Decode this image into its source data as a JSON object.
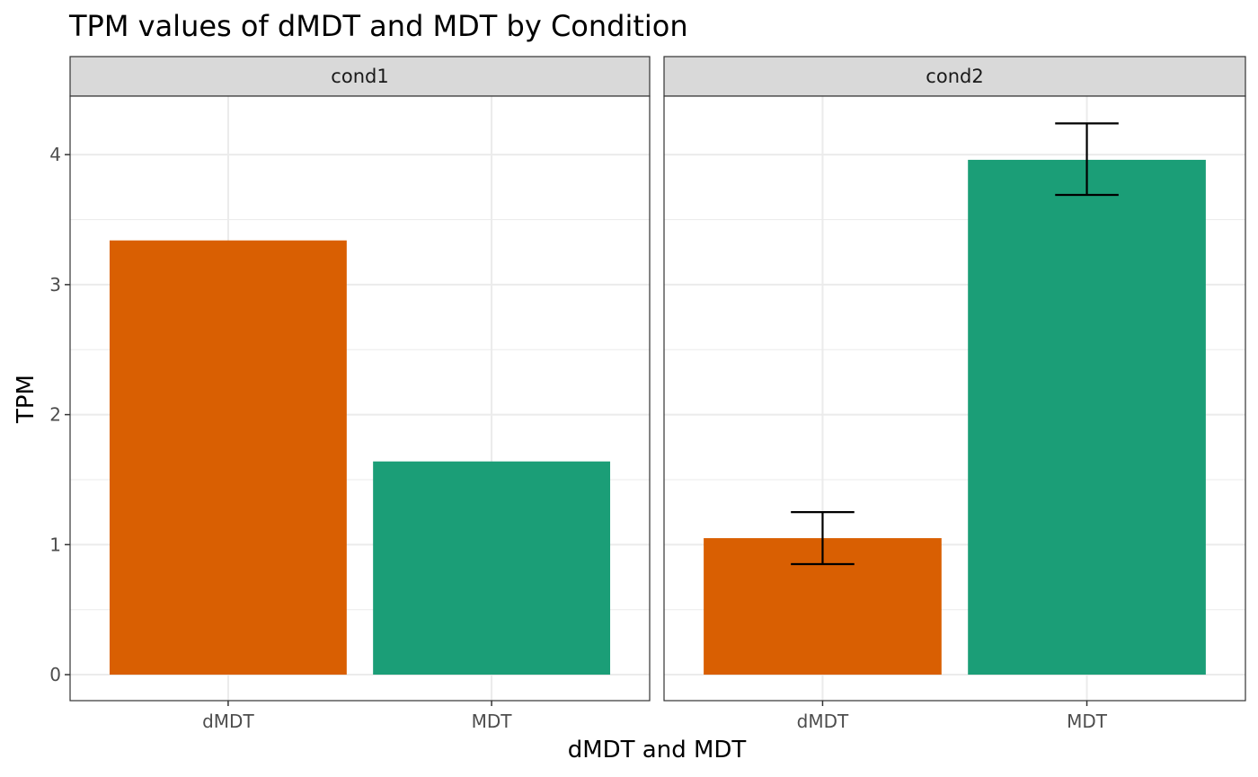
{
  "chart_data": {
    "type": "bar",
    "title": "TPM values of dMDT and MDT by Condition",
    "xlabel": "dMDT and MDT",
    "ylabel": "TPM",
    "ylim": [
      -0.2,
      4.45
    ],
    "yticks": [
      0,
      1,
      2,
      3,
      4
    ],
    "categories": [
      "dMDT",
      "MDT"
    ],
    "colors": {
      "dMDT": "#D95F02",
      "MDT": "#1B9E77"
    },
    "grid": true,
    "facets": [
      {
        "label": "cond1",
        "bars": [
          {
            "category": "dMDT",
            "value": 3.34
          },
          {
            "category": "MDT",
            "value": 1.64
          }
        ]
      },
      {
        "label": "cond2",
        "bars": [
          {
            "category": "dMDT",
            "value": 1.05,
            "error": [
              0.85,
              1.25
            ]
          },
          {
            "category": "MDT",
            "value": 3.96,
            "error": [
              3.69,
              4.24
            ]
          }
        ]
      }
    ]
  }
}
